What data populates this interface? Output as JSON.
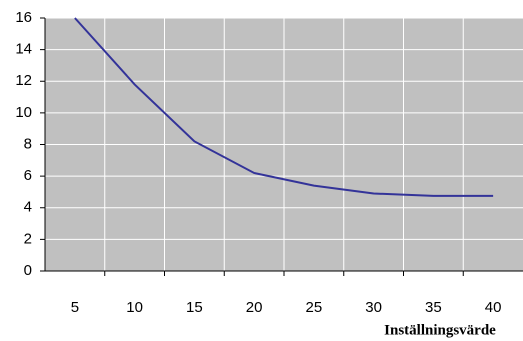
{
  "chart_data": {
    "type": "line",
    "x_label": "Inställningsvärde",
    "categories": [
      "5",
      "10",
      "15",
      "20",
      "25",
      "30",
      "35",
      "40"
    ],
    "series": [
      {
        "color": "#333399",
        "values": [
          16,
          11.8,
          8.2,
          6.2,
          5.4,
          4.9,
          4.75,
          4.75
        ]
      }
    ],
    "ylim": [
      0,
      16
    ],
    "yticks": [
      0,
      2,
      4,
      6,
      8,
      10,
      12,
      14,
      16
    ],
    "grid": true,
    "plot_background": "#c0c0c0"
  }
}
